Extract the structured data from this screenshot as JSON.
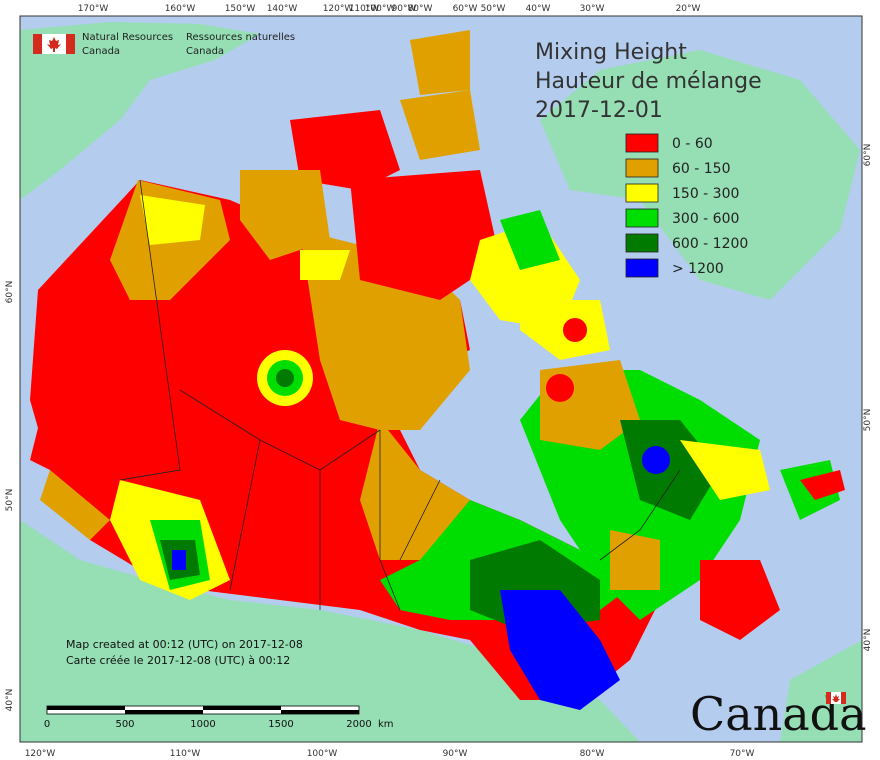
{
  "agency": {
    "en_line1": "Natural Resources",
    "en_line2": "Canada",
    "fr_line1": "Ressources naturelles",
    "fr_line2": "Canada"
  },
  "title": {
    "en": "Mixing Height",
    "fr": "Hauteur de mélange",
    "date": "2017-12-01"
  },
  "legend": [
    {
      "label": "0 - 60",
      "color": "#ff0000"
    },
    {
      "label": "60 - 150",
      "color": "#e0a000"
    },
    {
      "label": "150 - 300",
      "color": "#ffff00"
    },
    {
      "label": "300 - 600",
      "color": "#00dd00"
    },
    {
      "label": "600 - 1200",
      "color": "#007a00"
    },
    {
      "label": "> 1200",
      "color": "#0000ff"
    }
  ],
  "note": {
    "en": "Map created at 00:12 (UTC) on 2017-12-08",
    "fr": "Carte créée le 2017-12-08 (UTC) à 00:12"
  },
  "scalebar": {
    "labels": [
      "0",
      "500",
      "1000",
      "1500",
      "2000"
    ],
    "unit": "km"
  },
  "wordmark": "Canada",
  "graticule": {
    "top": [
      "170°W",
      "160°W",
      "150°W",
      "140°W",
      "120°W",
      "110°W",
      "100°W",
      "90°W",
      "80°W",
      "60°W",
      "50°W",
      "40°W",
      "30°W",
      "20°W"
    ],
    "bottom": [
      "120°W",
      "110°W",
      "100°W",
      "90°W",
      "80°W",
      "70°W"
    ],
    "left": [
      "60°N",
      "50°N",
      "40°N"
    ],
    "right": [
      "60°N",
      "50°N",
      "40°N"
    ]
  },
  "colors": {
    "ocean": "#b4cdee",
    "land_other": "#96deb4",
    "frame": "#333333"
  }
}
